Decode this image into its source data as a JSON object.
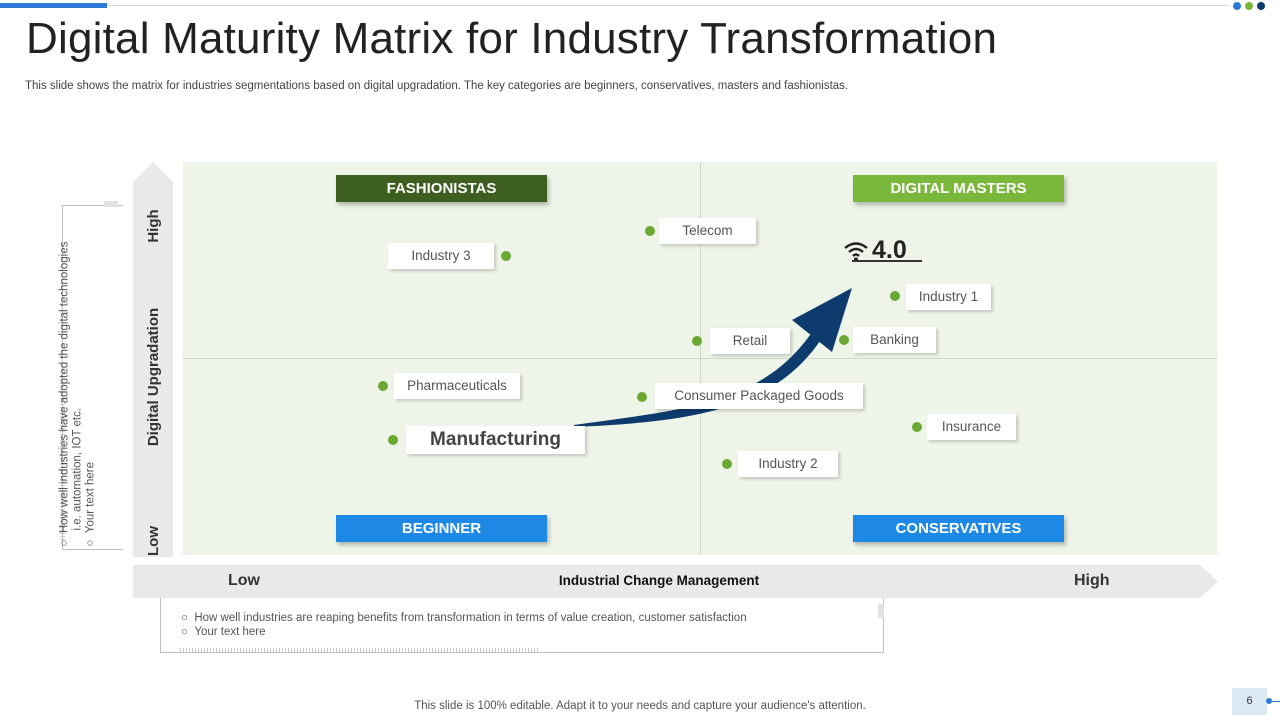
{
  "header": {
    "title": "Digital Maturity Matrix for Industry Transformation",
    "subtitle": "This slide shows the matrix for industries segmentations based on digital upgradation. The key categories are beginners, conservatives, masters and fashionistas."
  },
  "axes": {
    "y_title": "Digital Upgradation",
    "y_high": "High",
    "y_low": "Low",
    "x_title": "Industrial Change Management",
    "x_low": "Low",
    "x_high": "High"
  },
  "quadrants": {
    "top_left": {
      "label": "FASHIONISTAS",
      "color": "#3d5f1f"
    },
    "top_right": {
      "label": "DIGITAL MASTERS",
      "color": "#7ab83c"
    },
    "bottom_left": {
      "label": "BEGINNER",
      "color": "#1e88e5"
    },
    "bottom_right": {
      "label": "CONSERVATIVES",
      "color": "#1e88e5"
    }
  },
  "items": {
    "telecom": "Telecom",
    "industry3": "Industry 3",
    "industry1": "Industry 1",
    "retail": "Retail",
    "banking": "Banking",
    "pharmaceuticals": "Pharmaceuticals",
    "cpg": "Consumer Packaged Goods",
    "manufacturing": "Manufacturing",
    "insurance": "Insurance",
    "industry2": "Industry 2"
  },
  "badge": {
    "text": "4.0",
    "icon": "wifi-icon"
  },
  "side_note": {
    "line1": "How well industries have adopted the digital technologies",
    "line2": "i.e. automation, IOT etc.",
    "line3": "Your text here"
  },
  "bottom_note": {
    "line1": "How well industries are reaping benefits from transformation in terms of value creation, customer satisfaction",
    "line2": "Your text here"
  },
  "footer": {
    "text": "This slide is 100% editable. Adapt it to your needs and capture your audience's attention.",
    "page": "6"
  },
  "colors": {
    "accent": "#2b7bd6",
    "dot_green": "#6aa832",
    "arrow_navy": "#0d3b6e",
    "matrix_bg": "#eef4e8"
  }
}
